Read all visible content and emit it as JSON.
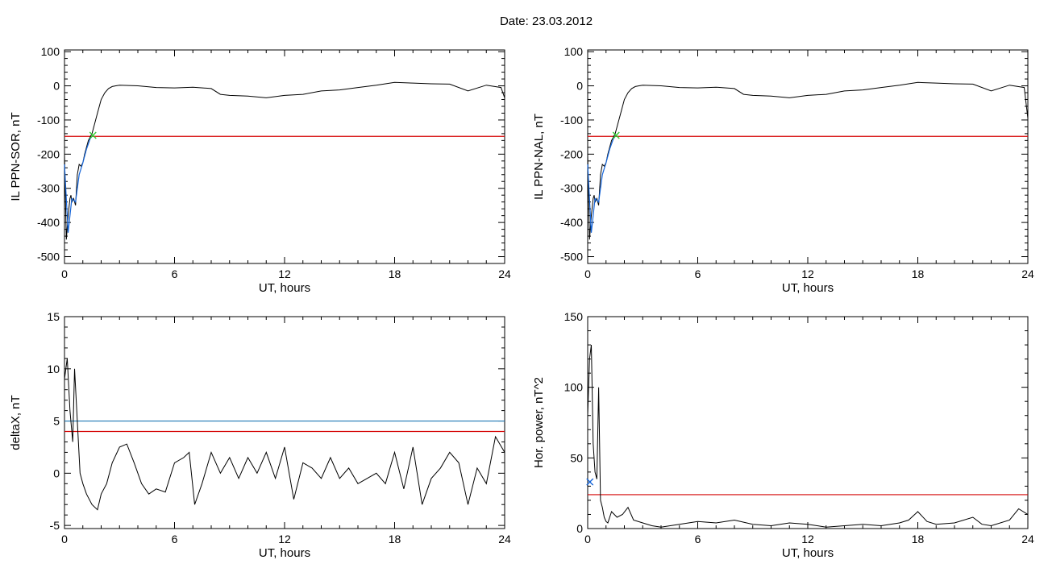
{
  "header": {
    "date_label": "Date:  23.03.2012"
  },
  "colors": {
    "trace": "#000000",
    "threshold_red": "#d40000",
    "threshold_blue": "#1f77b4",
    "marker_green": "#33cc33",
    "highlight_blue": "#1464d8"
  },
  "chart_data": [
    {
      "type": "line",
      "xlabel": "UT, hours",
      "ylabel": "IL PPN-SOR, nT",
      "xlim": [
        0,
        24
      ],
      "ylim": [
        -520,
        105
      ],
      "xticks": [
        0,
        6,
        12,
        18,
        24
      ],
      "yticks": [
        100,
        0,
        -100,
        -200,
        -300,
        -400,
        -500
      ],
      "tick_labels_x": [
        "0",
        "6",
        "12",
        "18",
        "24"
      ],
      "tick_labels_y": [
        "100",
        "0",
        "-100",
        "-200",
        "-300",
        "-400",
        "-500"
      ],
      "thresholds": [
        {
          "y": -148,
          "color": "#d40000"
        }
      ],
      "marker": {
        "x": 1.55,
        "y": -145,
        "symbol": "x",
        "color": "#33cc33"
      },
      "series": [
        {
          "x": [
            0,
            0.1,
            0.2,
            0.3,
            0.35,
            0.4,
            0.5,
            0.6,
            0.7,
            0.8,
            0.9,
            1.0,
            1.1,
            1.2,
            1.3,
            1.4,
            1.5,
            1.6,
            1.8,
            2.0,
            2.2,
            2.4,
            2.6,
            2.8,
            3,
            4,
            5,
            6,
            7,
            8,
            8.5,
            9,
            10,
            11,
            12,
            13,
            14,
            15,
            16,
            17,
            18,
            19,
            20,
            21,
            22,
            23,
            23.8,
            24
          ],
          "y": [
            -200,
            -450,
            -380,
            -330,
            -320,
            -340,
            -330,
            -350,
            -260,
            -230,
            -235,
            -225,
            -200,
            -180,
            -160,
            -150,
            -140,
            -120,
            -80,
            -40,
            -20,
            -8,
            -2,
            0,
            2,
            0,
            -5,
            -6,
            -4,
            -8,
            -25,
            -28,
            -30,
            -35,
            -28,
            -25,
            -15,
            -12,
            -5,
            2,
            10,
            8,
            6,
            5,
            -15,
            2,
            -5,
            -35
          ]
        }
      ],
      "highlight": {
        "x": [
          0,
          0.2,
          0.4,
          0.6,
          0.8,
          1.0,
          1.2,
          1.4,
          1.55
        ],
        "y": [
          -230,
          -430,
          -330,
          -340,
          -260,
          -225,
          -185,
          -155,
          -145
        ]
      }
    },
    {
      "type": "line",
      "xlabel": "UT, hours",
      "ylabel": "IL PPN-NAL, nT",
      "xlim": [
        0,
        24
      ],
      "ylim": [
        -520,
        105
      ],
      "xticks": [
        0,
        6,
        12,
        18,
        24
      ],
      "yticks": [
        100,
        0,
        -100,
        -200,
        -300,
        -400,
        -500
      ],
      "tick_labels_x": [
        "0",
        "6",
        "12",
        "18",
        "24"
      ],
      "tick_labels_y": [
        "100",
        "0",
        "-100",
        "-200",
        "-300",
        "-400",
        "-500"
      ],
      "thresholds": [
        {
          "y": -148,
          "color": "#d40000"
        }
      ],
      "marker": {
        "x": 1.55,
        "y": -145,
        "symbol": "x",
        "color": "#33cc33"
      },
      "series": [
        {
          "x": [
            0,
            0.1,
            0.2,
            0.3,
            0.35,
            0.4,
            0.5,
            0.6,
            0.7,
            0.8,
            0.9,
            1.0,
            1.1,
            1.2,
            1.3,
            1.4,
            1.5,
            1.6,
            1.8,
            2.0,
            2.2,
            2.4,
            2.6,
            2.8,
            3,
            4,
            5,
            6,
            7,
            8,
            8.5,
            9,
            10,
            11,
            12,
            13,
            14,
            15,
            16,
            17,
            18,
            19,
            20,
            21,
            22,
            23,
            23.8,
            24
          ],
          "y": [
            -200,
            -450,
            -380,
            -330,
            -320,
            -340,
            -330,
            -350,
            -260,
            -230,
            -235,
            -225,
            -200,
            -180,
            -160,
            -150,
            -140,
            -120,
            -80,
            -40,
            -20,
            -8,
            -2,
            0,
            2,
            0,
            -5,
            -6,
            -4,
            -8,
            -25,
            -28,
            -30,
            -35,
            -28,
            -25,
            -15,
            -12,
            -5,
            2,
            10,
            8,
            6,
            5,
            -15,
            2,
            -5,
            -95
          ]
        }
      ],
      "highlight": {
        "x": [
          0,
          0.2,
          0.4,
          0.6,
          0.8,
          1.0,
          1.2,
          1.4,
          1.55
        ],
        "y": [
          -230,
          -430,
          -330,
          -340,
          -260,
          -225,
          -185,
          -155,
          -145
        ]
      }
    },
    {
      "type": "line",
      "xlabel": "UT, hours",
      "ylabel": "deltaX, nT",
      "xlim": [
        0,
        24
      ],
      "ylim": [
        -5.3,
        15
      ],
      "xticks": [
        0,
        6,
        12,
        18,
        24
      ],
      "yticks": [
        15,
        10,
        5,
        0,
        -5
      ],
      "tick_labels_x": [
        "0",
        "6",
        "12",
        "18",
        "24"
      ],
      "tick_labels_y": [
        "15",
        "10",
        "5",
        "0",
        "-5"
      ],
      "thresholds": [
        {
          "y": 5,
          "color": "#1f77b4"
        },
        {
          "y": 4,
          "color": "#d40000"
        }
      ],
      "series": [
        {
          "x": [
            0,
            0.15,
            0.3,
            0.45,
            0.55,
            0.7,
            0.85,
            1.0,
            1.2,
            1.5,
            1.8,
            2.0,
            2.3,
            2.6,
            3.0,
            3.4,
            3.8,
            4.2,
            4.6,
            5.0,
            5.5,
            6.0,
            6.5,
            6.8,
            7.1,
            7.5,
            8.0,
            8.5,
            9.0,
            9.5,
            10.0,
            10.5,
            11.0,
            11.5,
            12.0,
            12.5,
            13.0,
            13.5,
            14.0,
            14.5,
            15.0,
            15.5,
            16.0,
            16.5,
            17.0,
            17.5,
            18.0,
            18.5,
            19.0,
            19.5,
            20.0,
            20.5,
            21.0,
            21.5,
            22.0,
            22.5,
            23.0,
            23.5,
            24.0
          ],
          "y": [
            9,
            11,
            6,
            3,
            10,
            5,
            0,
            -1,
            -2,
            -3,
            -3.5,
            -2,
            -1,
            1,
            2.5,
            2.8,
            1,
            -1,
            -2,
            -1.5,
            -1.8,
            1,
            1.5,
            2,
            -3,
            -1,
            2,
            0,
            1.5,
            -0.5,
            1.5,
            0,
            2,
            -0.5,
            2.5,
            -2.5,
            1,
            0.5,
            -0.5,
            1.5,
            -0.5,
            0.5,
            -1,
            -0.5,
            0,
            -1,
            2,
            -1.5,
            2.5,
            -3,
            -0.5,
            0.5,
            2,
            1,
            -3,
            0.5,
            -1,
            3.5,
            2
          ]
        }
      ]
    },
    {
      "type": "line",
      "xlabel": "UT, hours",
      "ylabel": "Hor. power, nT^2",
      "xlim": [
        0,
        24
      ],
      "ylim": [
        0,
        150
      ],
      "xticks": [
        0,
        6,
        12,
        18,
        24
      ],
      "yticks": [
        150,
        100,
        50,
        0
      ],
      "tick_labels_x": [
        "0",
        "6",
        "12",
        "18",
        "24"
      ],
      "tick_labels_y": [
        "150",
        "100",
        "50",
        "0"
      ],
      "thresholds": [
        {
          "y": 24,
          "color": "#d40000"
        }
      ],
      "marker": {
        "x": 0.12,
        "y": 33,
        "symbol": "x",
        "color": "#1464d8"
      },
      "series": [
        {
          "x": [
            0,
            0.1,
            0.2,
            0.3,
            0.4,
            0.5,
            0.6,
            0.7,
            0.8,
            0.9,
            1.0,
            1.1,
            1.3,
            1.6,
            1.9,
            2.2,
            2.5,
            3,
            3.5,
            4,
            5,
            6,
            7,
            8,
            9,
            10,
            11,
            12,
            13,
            14,
            15,
            16,
            17,
            17.5,
            18,
            18.5,
            19,
            20,
            21,
            21.5,
            22,
            23,
            23.5,
            24
          ],
          "y": [
            80,
            120,
            130,
            60,
            40,
            35,
            100,
            20,
            15,
            8,
            5,
            4,
            12,
            8,
            10,
            15,
            6,
            4,
            2,
            1,
            3,
            5,
            4,
            6,
            3,
            2,
            4,
            3,
            1,
            2,
            3,
            2,
            4,
            6,
            12,
            5,
            3,
            4,
            8,
            3,
            2,
            6,
            14,
            10
          ]
        }
      ]
    }
  ]
}
